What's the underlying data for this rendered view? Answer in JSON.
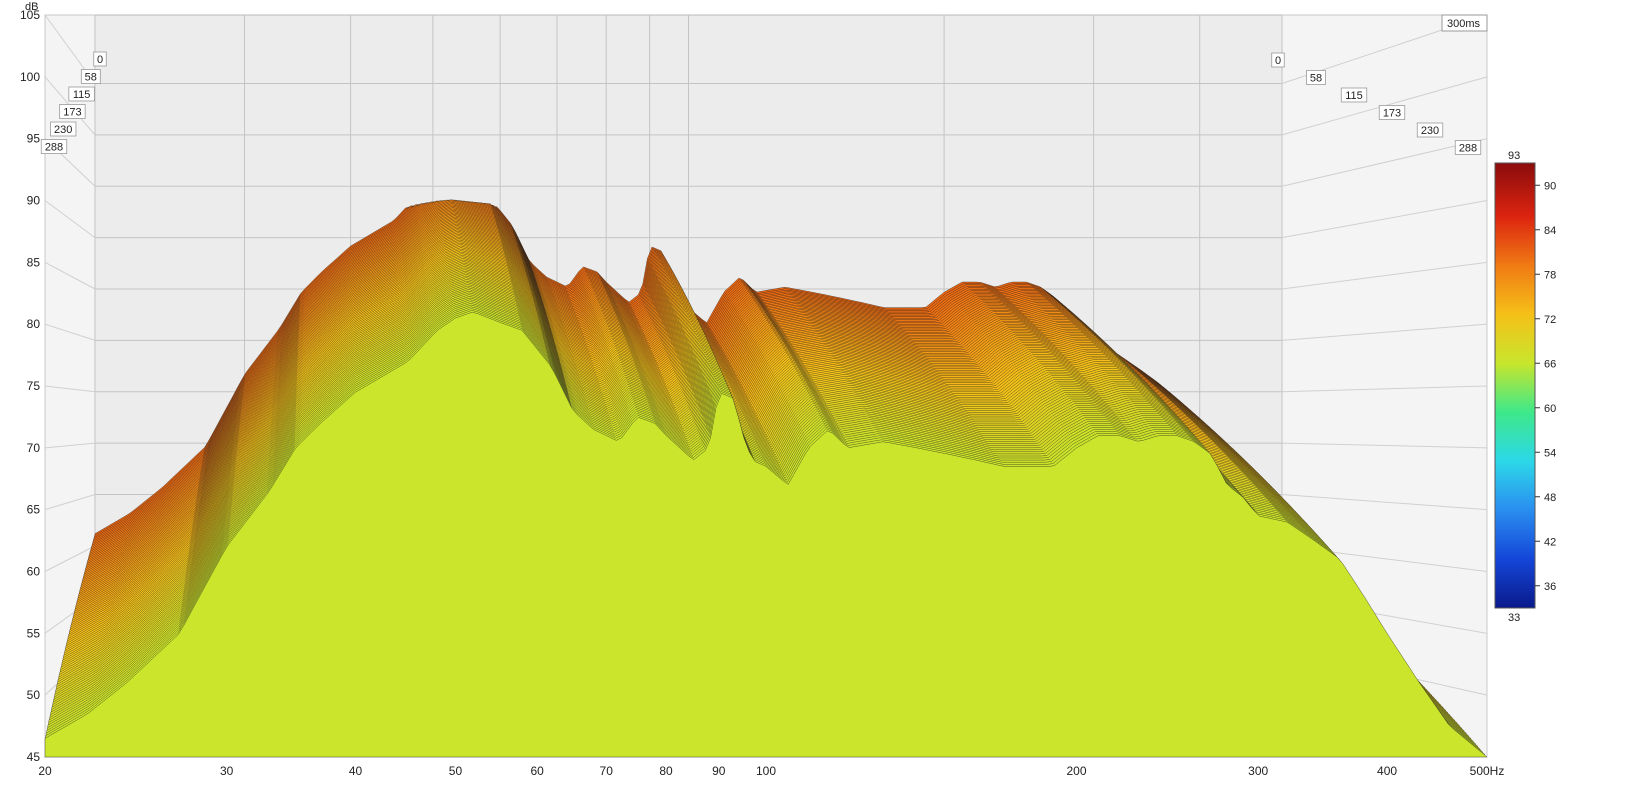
{
  "chart_data": {
    "type": "waterfall",
    "ylabel": "dB",
    "xunit": "Hz",
    "x_scale": "log",
    "xlim": [
      20,
      500
    ],
    "ylim": [
      45,
      105
    ],
    "x_ticks": [
      {
        "v": 20,
        "label": "20"
      },
      {
        "v": 30,
        "label": "30"
      },
      {
        "v": 40,
        "label": "40"
      },
      {
        "v": 50,
        "label": "50"
      },
      {
        "v": 60,
        "label": "60"
      },
      {
        "v": 70,
        "label": "70"
      },
      {
        "v": 80,
        "label": "80"
      },
      {
        "v": 90,
        "label": "90"
      },
      {
        "v": 100,
        "label": "100"
      },
      {
        "v": 200,
        "label": "200"
      },
      {
        "v": 300,
        "label": "300"
      },
      {
        "v": 400,
        "label": "400"
      },
      {
        "v": 500,
        "label": "500Hz"
      }
    ],
    "y_ticks": [
      "45",
      "50",
      "55",
      "60",
      "65",
      "70",
      "75",
      "80",
      "85",
      "90",
      "95",
      "100",
      "105"
    ],
    "time_label": "300ms",
    "time_ticks": [
      "0",
      "58",
      "115",
      "173",
      "230",
      "288"
    ],
    "time_range_ms": [
      0,
      300
    ],
    "colorbar": {
      "min": 33,
      "max": 93,
      "ticks": [
        "36",
        "42",
        "48",
        "54",
        "60",
        "66",
        "72",
        "78",
        "84",
        "90"
      ],
      "min_label": "33",
      "max_label": "93",
      "colors": [
        "#0a1a8c",
        "#1446d8",
        "#2a8ef0",
        "#2cd8e8",
        "#3ee88a",
        "#c8e62c",
        "#f5c018",
        "#f07a14",
        "#dc2410",
        "#8a0c0c"
      ]
    },
    "front_slice": [
      [
        20,
        46.5
      ],
      [
        22,
        48.5
      ],
      [
        24,
        51
      ],
      [
        27,
        55
      ],
      [
        30,
        62
      ],
      [
        33,
        66.5
      ],
      [
        35,
        70
      ],
      [
        37,
        72
      ],
      [
        40,
        74.5
      ],
      [
        45,
        77
      ],
      [
        48,
        79.5
      ],
      [
        50,
        80.5
      ],
      [
        52,
        81
      ],
      [
        55,
        80.2
      ],
      [
        58,
        79.5
      ],
      [
        62,
        76.5
      ],
      [
        65,
        73
      ],
      [
        68,
        71.5
      ],
      [
        70,
        71
      ],
      [
        72,
        70.5
      ],
      [
        75,
        72.5
      ],
      [
        78,
        72
      ],
      [
        80,
        71
      ],
      [
        85,
        69
      ],
      [
        88,
        70
      ],
      [
        90,
        74.5
      ],
      [
        93,
        74
      ],
      [
        95,
        71
      ],
      [
        97,
        69
      ],
      [
        100,
        68.5
      ],
      [
        105,
        67
      ],
      [
        110,
        70
      ],
      [
        115,
        71.5
      ],
      [
        120,
        70
      ],
      [
        130,
        70.5
      ],
      [
        140,
        70
      ],
      [
        150,
        69.5
      ],
      [
        160,
        69
      ],
      [
        170,
        68.5
      ],
      [
        180,
        68.5
      ],
      [
        190,
        68.5
      ],
      [
        200,
        70
      ],
      [
        210,
        71
      ],
      [
        220,
        71
      ],
      [
        230,
        70.5
      ],
      [
        240,
        71
      ],
      [
        250,
        71
      ],
      [
        260,
        70.5
      ],
      [
        270,
        69.5
      ],
      [
        280,
        67
      ],
      [
        290,
        66
      ],
      [
        300,
        64.5
      ],
      [
        320,
        64
      ],
      [
        340,
        62.5
      ],
      [
        360,
        61
      ],
      [
        380,
        58
      ],
      [
        400,
        55
      ],
      [
        430,
        51
      ],
      [
        460,
        47.5
      ],
      [
        500,
        45
      ]
    ],
    "decay_rate_db_per_slice": 0.3,
    "slices": 90
  }
}
